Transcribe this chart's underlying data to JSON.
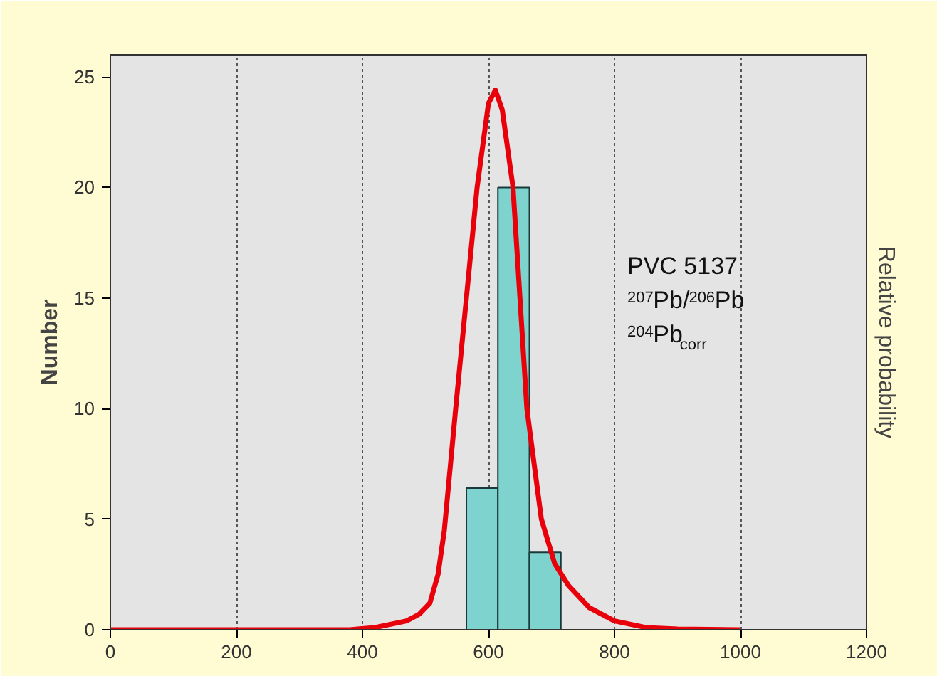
{
  "chart_data": {
    "type": "histogram",
    "ylabel": "Number",
    "y2label": "Relative probability",
    "annotations": [
      "PVC 5137",
      "$^{207}$Pb/$^{206}$Pb",
      "$^{204}$Pb$_{corr}$"
    ],
    "series": [
      {
        "bins": [
          565,
          615,
          665,
          715
        ],
        "values": [
          6.4,
          20,
          3.5
        ],
        "color": "#7fd3cf"
      },
      {
        "type": "line",
        "color": "#e8000b",
        "x": [
          0,
          380,
          420,
          470,
          490,
          507,
          520,
          530,
          548,
          565,
          582,
          600,
          611,
          622,
          639,
          650,
          661,
          684,
          705,
          727,
          760,
          800,
          850,
          900,
          1000
        ],
        "values": [
          0,
          0,
          0.1,
          0.4,
          0.7,
          1.2,
          2.5,
          4.5,
          10,
          15,
          20,
          23.8,
          24.4,
          23.5,
          20,
          15,
          10,
          5,
          3,
          2,
          1,
          0.4,
          0.1,
          0.03,
          0
        ]
      }
    ],
    "xlim": [
      0,
      1200
    ],
    "ylim": [
      0,
      26
    ],
    "xticks": [
      0,
      200,
      400,
      600,
      800,
      1000,
      1200
    ],
    "yticks": [
      0,
      5,
      10,
      15,
      20,
      25
    ],
    "grid": "x"
  }
}
